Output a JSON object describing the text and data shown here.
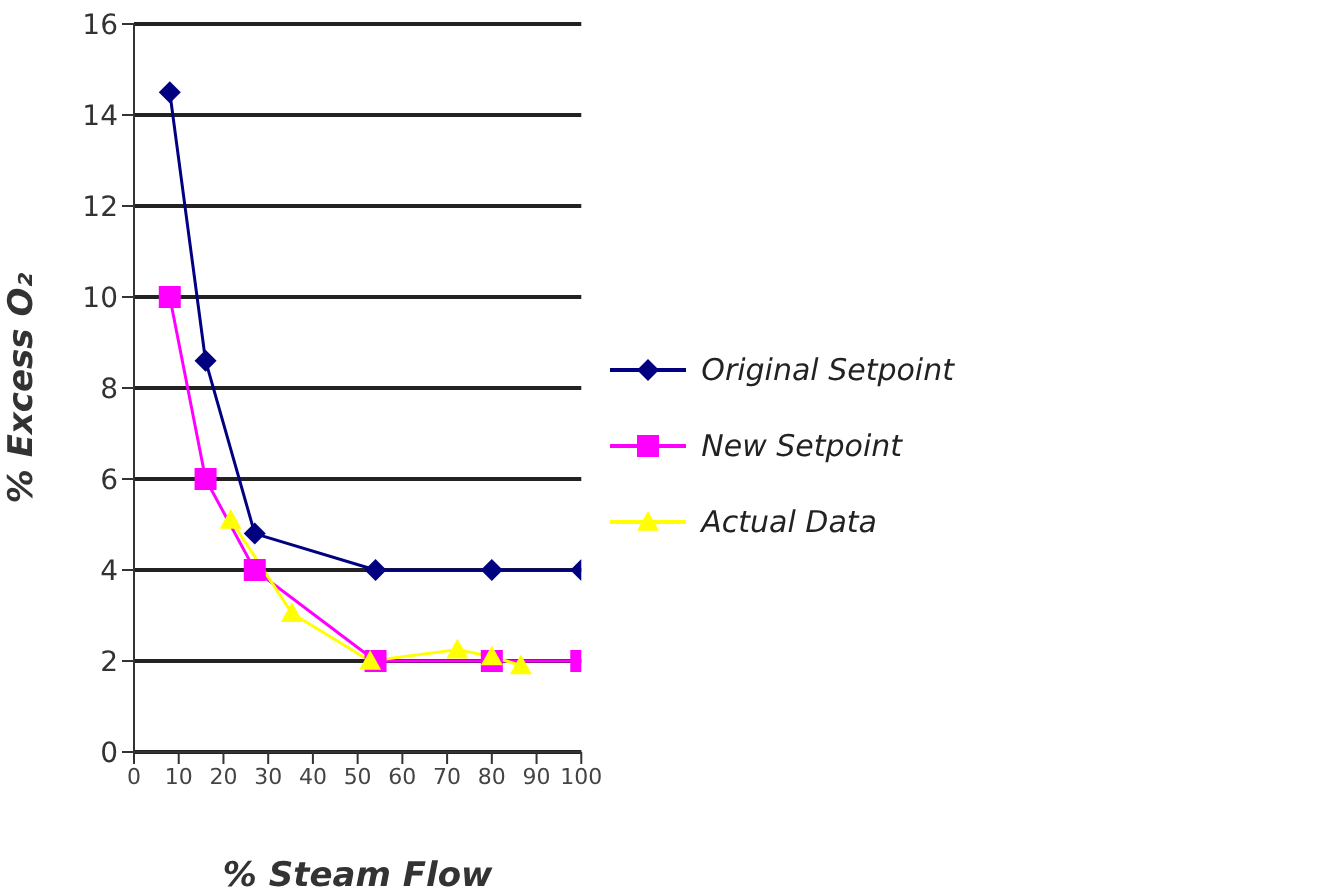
{
  "chart_data": {
    "type": "line",
    "xlabel": "% Steam Flow",
    "ylabel": "% Excess O₂",
    "xlim": [
      0,
      100
    ],
    "xticks": [
      0,
      10,
      20,
      30,
      40,
      50,
      60,
      70,
      80,
      90,
      100
    ],
    "ylim": [
      0,
      16
    ],
    "yticks": [
      0,
      2,
      4,
      6,
      8,
      10,
      12,
      14,
      16
    ],
    "grid": "y",
    "legend": "right",
    "series": [
      {
        "name": "Original Setpoint",
        "color": "#000080",
        "marker": "diamond",
        "x": [
          8,
          16,
          27,
          54,
          80,
          100
        ],
        "values": [
          14.5,
          8.6,
          4.8,
          4,
          4,
          4
        ]
      },
      {
        "name": "New Setpoint",
        "color": "#ff00ff",
        "marker": "square",
        "x": [
          8,
          16,
          27,
          54,
          80,
          100
        ],
        "values": [
          10,
          6,
          4,
          2,
          2,
          2
        ]
      },
      {
        "name": "Actual Data",
        "color": "#ffff00",
        "marker": "triangle",
        "x": [
          21.6,
          35.3,
          52.8,
          72.3,
          80,
          86.5
        ],
        "values": [
          5.1,
          3.05,
          2,
          2.25,
          2.1,
          1.9
        ]
      }
    ]
  }
}
